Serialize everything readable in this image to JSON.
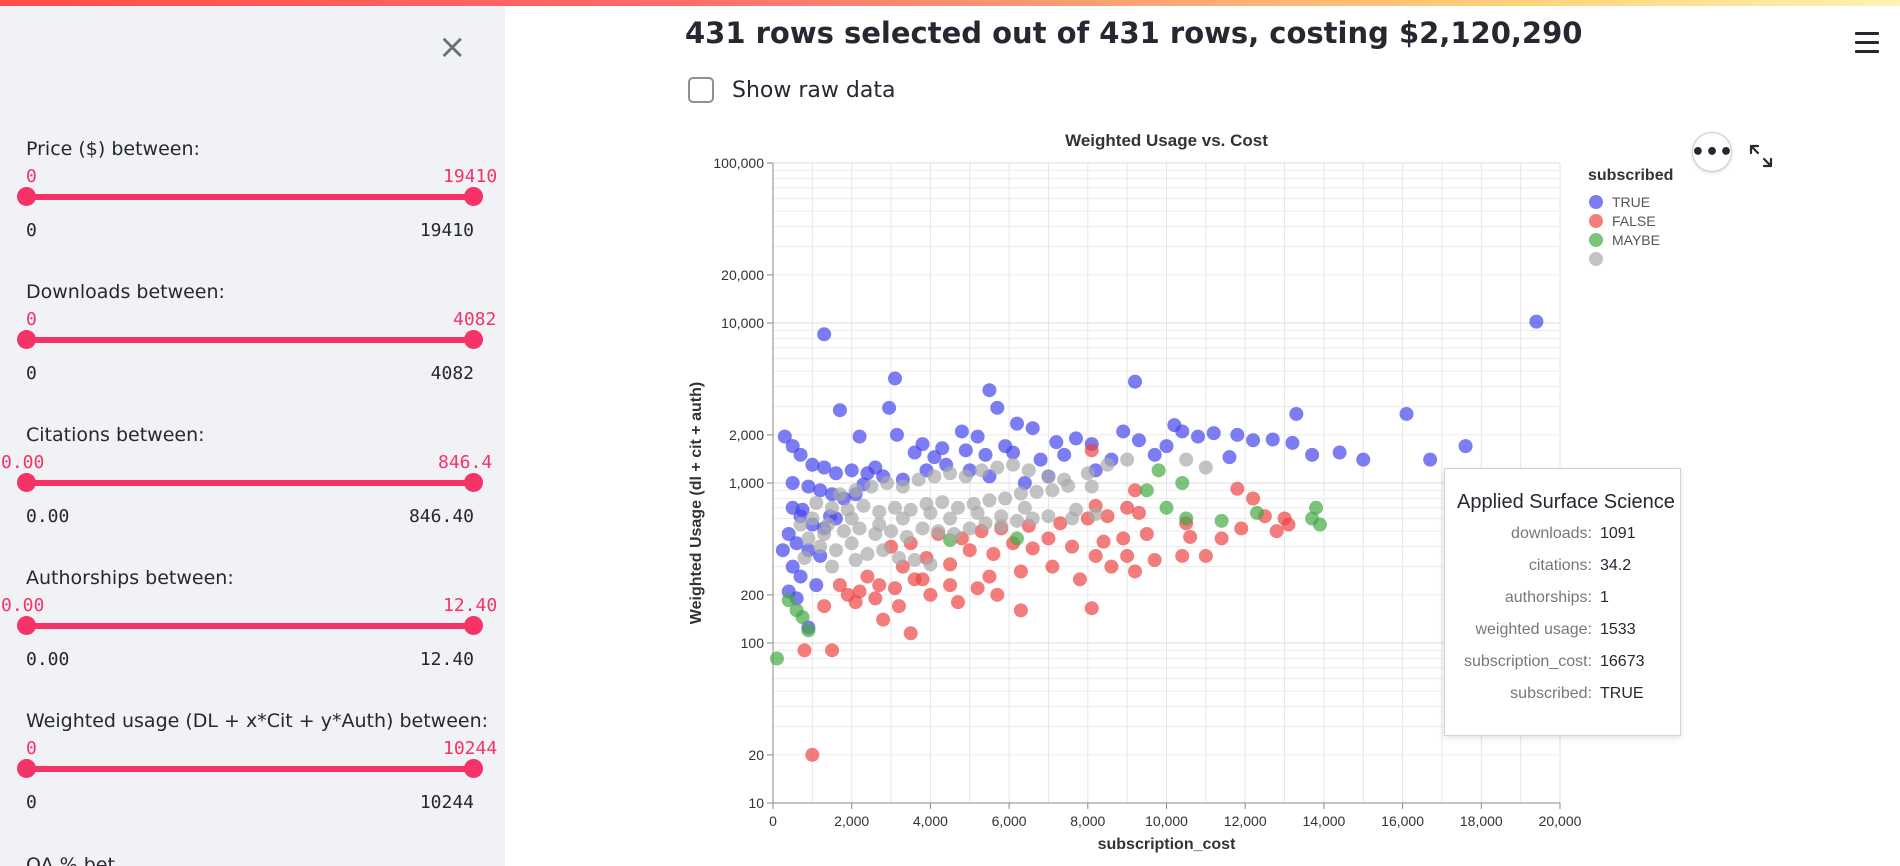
{
  "sidebar": {
    "close_label": "×",
    "sliders": [
      {
        "label": "Price ($) between:",
        "cur_min": "0",
        "cur_max": "19410",
        "min": "0",
        "max": "19410"
      },
      {
        "label": "Downloads between:",
        "cur_min": "0",
        "cur_max": "4082",
        "min": "0",
        "max": "4082"
      },
      {
        "label": "Citations between:",
        "cur_min": "0.00",
        "cur_max": "846.4",
        "min": "0.00",
        "max": "846.40"
      },
      {
        "label": "Authorships between:",
        "cur_min": "0.00",
        "cur_max": "12.40",
        "min": "0.00",
        "max": "12.40"
      },
      {
        "label": "Weighted usage (DL + x*Cit + y*Auth) between:",
        "cur_min": "0",
        "cur_max": "10244",
        "min": "0",
        "max": "10244"
      }
    ],
    "cutoff_label": "OA % bet..."
  },
  "main": {
    "headline": "431 rows selected out of 431 rows, costing $2,120,290",
    "show_raw_label": "Show raw data",
    "show_raw_checked": false,
    "more_label": "•••"
  },
  "tooltip": {
    "title": "Applied Surface Science",
    "rows": [
      {
        "key": "downloads:",
        "value": "1091"
      },
      {
        "key": "citations:",
        "value": "34.2"
      },
      {
        "key": "authorships:",
        "value": "1"
      },
      {
        "key": "weighted usage:",
        "value": "1533"
      },
      {
        "key": "subscription_cost:",
        "value": "16673"
      },
      {
        "key": "subscribed:",
        "value": "TRUE"
      }
    ]
  },
  "chart_data": {
    "type": "scatter",
    "title": "Weighted Usage vs. Cost",
    "xlabel": "subscription_cost",
    "ylabel": "Weighted Usage (dl + cit + auth)",
    "x_scale": "linear",
    "y_scale": "log",
    "xlim": [
      0,
      20000
    ],
    "ylim": [
      10,
      100000
    ],
    "x_ticks": [
      0,
      2000,
      4000,
      6000,
      8000,
      10000,
      12000,
      14000,
      16000,
      18000,
      20000
    ],
    "x_tick_labels": [
      "0",
      "2,000",
      "4,000",
      "6,000",
      "8,000",
      "10,000",
      "12,000",
      "14,000",
      "16,000",
      "18,000",
      "20,000"
    ],
    "y_ticks": [
      10,
      20,
      100,
      200,
      1000,
      2000,
      10000,
      20000,
      100000
    ],
    "y_tick_labels": [
      "10",
      "20",
      "100",
      "200",
      "1,000",
      "2,000",
      "10,000",
      "20,000",
      "100,000"
    ],
    "grid": true,
    "legend_title": "subscribed",
    "legend_position": "top-right",
    "series": [
      {
        "name": "TRUE",
        "color": "#4444ee",
        "points": [
          [
            19400,
            10200
          ],
          [
            1300,
            8500
          ],
          [
            3100,
            4500
          ],
          [
            5500,
            3800
          ],
          [
            9200,
            4300
          ],
          [
            16100,
            2700
          ],
          [
            13300,
            2700
          ],
          [
            1700,
            2850
          ],
          [
            2950,
            2950
          ],
          [
            5700,
            2950
          ],
          [
            6200,
            2350
          ],
          [
            6600,
            2200
          ],
          [
            10400,
            2100
          ],
          [
            11200,
            2050
          ],
          [
            11800,
            2000
          ],
          [
            12700,
            1870
          ],
          [
            13200,
            1780
          ],
          [
            17600,
            1700
          ],
          [
            3150,
            2000
          ],
          [
            2200,
            1950
          ],
          [
            4800,
            2100
          ],
          [
            5200,
            1950
          ],
          [
            7700,
            1900
          ],
          [
            8100,
            1750
          ],
          [
            9300,
            1850
          ],
          [
            10000,
            1700
          ],
          [
            10800,
            1950
          ],
          [
            12200,
            1850
          ],
          [
            3800,
            1750
          ],
          [
            4300,
            1650
          ],
          [
            4900,
            1600
          ],
          [
            5400,
            1500
          ],
          [
            6100,
            1550
          ],
          [
            6800,
            1400
          ],
          [
            7400,
            1500
          ],
          [
            8600,
            1400
          ],
          [
            9700,
            1500
          ],
          [
            11600,
            1450
          ],
          [
            13700,
            1500
          ],
          [
            14400,
            1550
          ],
          [
            15000,
            1400
          ],
          [
            16700,
            1400
          ],
          [
            300,
            1950
          ],
          [
            500,
            1700
          ],
          [
            700,
            1500
          ],
          [
            1000,
            1300
          ],
          [
            1300,
            1250
          ],
          [
            1600,
            1150
          ],
          [
            2000,
            1200
          ],
          [
            2400,
            1150
          ],
          [
            2800,
            1100
          ],
          [
            3300,
            1050
          ],
          [
            3900,
            1200
          ],
          [
            4400,
            1300
          ],
          [
            5000,
            1200
          ],
          [
            5500,
            1100
          ],
          [
            6400,
            1000
          ],
          [
            7000,
            1100
          ],
          [
            8200,
            1200
          ],
          [
            500,
            1000
          ],
          [
            900,
            950
          ],
          [
            1200,
            900
          ],
          [
            1500,
            850
          ],
          [
            1800,
            800
          ],
          [
            2100,
            850
          ],
          [
            500,
            700
          ],
          [
            700,
            620
          ],
          [
            1000,
            550
          ],
          [
            1300,
            520
          ],
          [
            1600,
            600
          ],
          [
            400,
            480
          ],
          [
            600,
            420
          ],
          [
            900,
            380
          ],
          [
            1200,
            350
          ],
          [
            500,
            300
          ],
          [
            700,
            260
          ],
          [
            400,
            210
          ],
          [
            600,
            190
          ],
          [
            900,
            125
          ],
          [
            1100,
            230
          ],
          [
            250,
            380
          ],
          [
            750,
            680
          ],
          [
            1450,
            620
          ],
          [
            2300,
            980
          ],
          [
            2600,
            1250
          ],
          [
            3600,
            1550
          ],
          [
            4100,
            1450
          ],
          [
            5900,
            1700
          ],
          [
            7200,
            1800
          ],
          [
            8900,
            2100
          ],
          [
            10200,
            2300
          ]
        ]
      },
      {
        "name": "FALSE",
        "color": "#ee4444",
        "points": [
          [
            1000,
            20
          ],
          [
            800,
            90
          ],
          [
            1500,
            90
          ],
          [
            3500,
            115
          ],
          [
            8100,
            165
          ],
          [
            2800,
            140
          ],
          [
            1900,
            200
          ],
          [
            2200,
            210
          ],
          [
            2600,
            190
          ],
          [
            3100,
            220
          ],
          [
            3600,
            250
          ],
          [
            4000,
            200
          ],
          [
            4500,
            230
          ],
          [
            5200,
            220
          ],
          [
            5500,
            260
          ],
          [
            6300,
            280
          ],
          [
            7100,
            300
          ],
          [
            7800,
            250
          ],
          [
            8200,
            350
          ],
          [
            8600,
            300
          ],
          [
            9200,
            280
          ],
          [
            10400,
            350
          ],
          [
            11000,
            350
          ],
          [
            12500,
            620
          ],
          [
            13100,
            550
          ],
          [
            9700,
            330
          ],
          [
            9000,
            350
          ],
          [
            3300,
            300
          ],
          [
            3900,
            340
          ],
          [
            4500,
            310
          ],
          [
            5000,
            380
          ],
          [
            5600,
            360
          ],
          [
            6100,
            420
          ],
          [
            6600,
            390
          ],
          [
            7000,
            450
          ],
          [
            7600,
            400
          ],
          [
            8400,
            430
          ],
          [
            8900,
            450
          ],
          [
            9500,
            480
          ],
          [
            10600,
            460
          ],
          [
            11400,
            450
          ],
          [
            11900,
            520
          ],
          [
            12800,
            500
          ],
          [
            13000,
            600
          ],
          [
            3000,
            400
          ],
          [
            3500,
            420
          ],
          [
            4200,
            480
          ],
          [
            4800,
            450
          ],
          [
            5300,
            500
          ],
          [
            5800,
            520
          ],
          [
            6500,
            540
          ],
          [
            7300,
            560
          ],
          [
            8000,
            600
          ],
          [
            8500,
            620
          ],
          [
            9300,
            650
          ],
          [
            8200,
            720
          ],
          [
            9000,
            700
          ],
          [
            10500,
            560
          ],
          [
            11800,
            920
          ],
          [
            12200,
            800
          ],
          [
            1300,
            170
          ],
          [
            2100,
            180
          ],
          [
            2700,
            230
          ],
          [
            3200,
            170
          ],
          [
            2400,
            260
          ],
          [
            1700,
            230
          ],
          [
            3800,
            250
          ],
          [
            4700,
            180
          ],
          [
            5700,
            200
          ],
          [
            6300,
            160
          ],
          [
            9200,
            900
          ],
          [
            8100,
            1600
          ]
        ]
      },
      {
        "name": "MAYBE",
        "color": "#44aa44",
        "points": [
          [
            100,
            80
          ],
          [
            600,
            160
          ],
          [
            400,
            185
          ],
          [
            750,
            145
          ],
          [
            900,
            120
          ],
          [
            10000,
            700
          ],
          [
            10400,
            1000
          ],
          [
            10500,
            600
          ],
          [
            11400,
            580
          ],
          [
            12300,
            650
          ],
          [
            13700,
            600
          ],
          [
            13800,
            700
          ],
          [
            13900,
            550
          ],
          [
            9500,
            900
          ],
          [
            9800,
            1200
          ],
          [
            4500,
            440
          ],
          [
            6200,
            450
          ]
        ]
      },
      {
        "name": "",
        "color": "#aaaaaa",
        "points": [
          [
            1000,
            600
          ],
          [
            1400,
            550
          ],
          [
            1800,
            500
          ],
          [
            2200,
            520
          ],
          [
            2600,
            480
          ],
          [
            3000,
            500
          ],
          [
            3400,
            460
          ],
          [
            3800,
            520
          ],
          [
            4200,
            500
          ],
          [
            4600,
            480
          ],
          [
            5000,
            520
          ],
          [
            5400,
            560
          ],
          [
            5800,
            540
          ],
          [
            6200,
            580
          ],
          [
            6600,
            600
          ],
          [
            7000,
            620
          ],
          [
            7600,
            600
          ],
          [
            8200,
            640
          ],
          [
            900,
            450
          ],
          [
            1200,
            400
          ],
          [
            1600,
            380
          ],
          [
            2000,
            420
          ],
          [
            2400,
            360
          ],
          [
            2800,
            380
          ],
          [
            3200,
            340
          ],
          [
            3600,
            330
          ],
          [
            4000,
            310
          ],
          [
            1100,
            750
          ],
          [
            1500,
            700
          ],
          [
            1900,
            680
          ],
          [
            2300,
            720
          ],
          [
            2700,
            660
          ],
          [
            3100,
            700
          ],
          [
            3500,
            680
          ],
          [
            3900,
            740
          ],
          [
            4300,
            760
          ],
          [
            4700,
            700
          ],
          [
            5100,
            740
          ],
          [
            5500,
            780
          ],
          [
            5900,
            800
          ],
          [
            6300,
            860
          ],
          [
            6700,
            880
          ],
          [
            7100,
            900
          ],
          [
            7500,
            960
          ],
          [
            8100,
            950
          ],
          [
            1700,
            850
          ],
          [
            2100,
            900
          ],
          [
            2500,
            950
          ],
          [
            2900,
            1000
          ],
          [
            3300,
            950
          ],
          [
            3700,
            1050
          ],
          [
            4100,
            1100
          ],
          [
            4500,
            1150
          ],
          [
            4900,
            1100
          ],
          [
            5300,
            1200
          ],
          [
            5700,
            1250
          ],
          [
            6100,
            1300
          ],
          [
            6500,
            1200
          ],
          [
            7000,
            1100
          ],
          [
            7400,
            1050
          ],
          [
            8000,
            1150
          ],
          [
            8500,
            1300
          ],
          [
            9000,
            1400
          ],
          [
            10500,
            1400
          ],
          [
            11000,
            1250
          ],
          [
            700,
            550
          ],
          [
            1300,
            480
          ],
          [
            2000,
            600
          ],
          [
            2700,
            550
          ],
          [
            3300,
            600
          ],
          [
            4000,
            650
          ],
          [
            4500,
            600
          ],
          [
            5200,
            650
          ],
          [
            5800,
            620
          ],
          [
            6400,
            700
          ],
          [
            7700,
            680
          ],
          [
            1500,
            300
          ],
          [
            2100,
            330
          ],
          [
            800,
            340
          ]
        ]
      }
    ]
  }
}
